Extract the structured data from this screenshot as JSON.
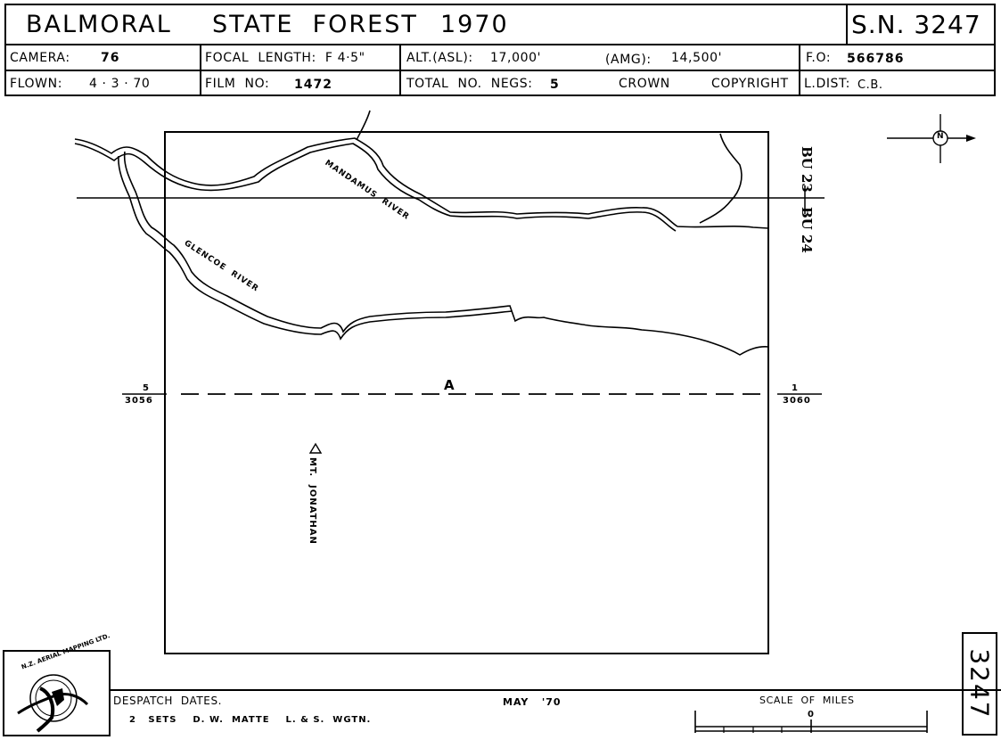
{
  "header": {
    "title_place": "BALMORAL",
    "title_rest": "STATE  FOREST",
    "title_year": "1970",
    "sn": "S.N. 3247",
    "camera_label": "CAMERA:",
    "camera_value": "76",
    "focal_label": "FOCAL  LENGTH:  F 4·5\"",
    "alt_label": "ALT.(ASL):",
    "alt_value": "17,000'",
    "amg_label": "(AMG):",
    "amg_value": "14,500'",
    "fo_label": "F.O:",
    "fo_value": "566786",
    "flown_label": "FLOWN:",
    "flown_value": "4 · 3 · 70",
    "film_label": "FILM  NO:",
    "film_value": "1472",
    "negs_label": "TOTAL  NO.  NEGS:",
    "negs_value": "5",
    "crown": "CROWN",
    "copyright": "COPYRIGHT",
    "ldist_label": "L.DIST:",
    "ldist_value": "C.B."
  },
  "map": {
    "sheet_top": "BU 23",
    "sheet_bottom": "BU 24",
    "river1": "MANDAMUS  RIVER",
    "river2": "GLENCOE  RIVER",
    "run_label": "A",
    "left_neg": "5",
    "left_frame": "3056",
    "right_neg": "1",
    "right_frame": "3060",
    "peak": "MT.  JONATHAN",
    "north": "N"
  },
  "footer": {
    "despatch_label": "DESPATCH  DATES.",
    "despatch_line": "2   SETS    D. W.  MATTE    L. & S.  WGTN.",
    "despatch_date": "MAY   '70",
    "scale_label": "SCALE  OF  MILES",
    "scale_zero": "0",
    "sn_vertical": "3247",
    "logo_text": "N.Z. AERIAL MAPPING LTD."
  }
}
